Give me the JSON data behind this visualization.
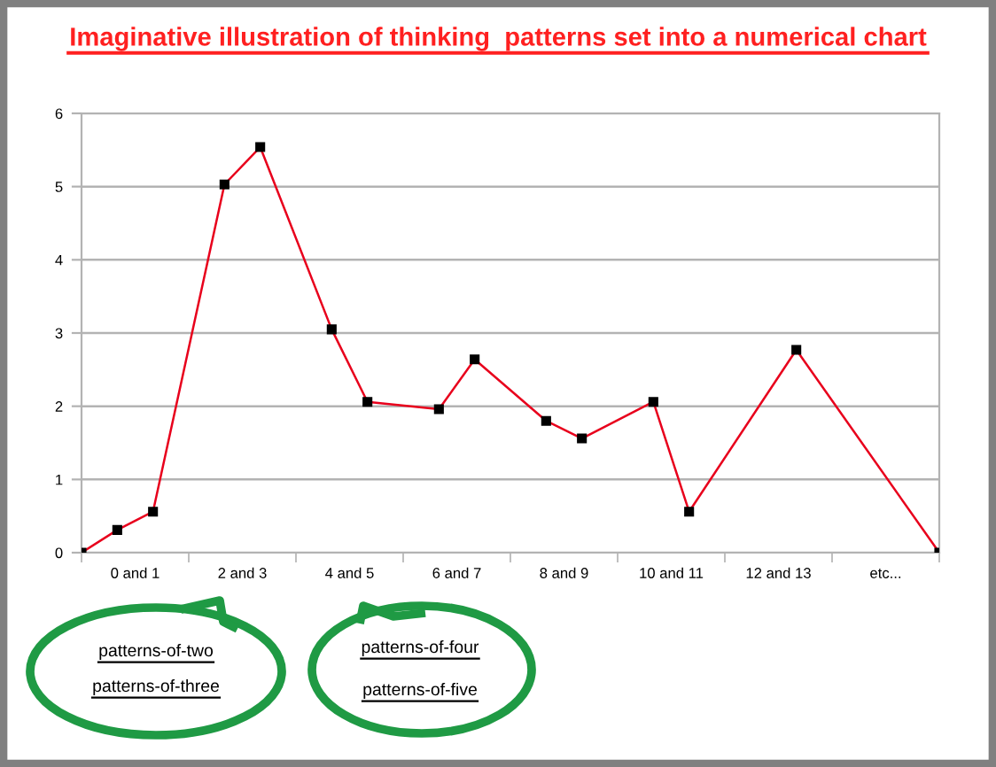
{
  "chart_data": {
    "type": "line",
    "title": "Imaginative illustration of thinking  patterns set into a numerical chart",
    "categories": [
      null,
      null,
      null,
      "0 and 1",
      null,
      null,
      null,
      null,
      null,
      "2 and 3",
      null,
      null,
      null,
      null,
      null,
      "4 and 5",
      null,
      null,
      null,
      null,
      null,
      "6 and 7",
      null,
      null,
      null,
      null,
      null,
      "8 and 9",
      null,
      null,
      null,
      null,
      null,
      "10 and 11",
      null,
      null,
      null,
      null,
      null,
      "12 and 13",
      null,
      null,
      null,
      null,
      null,
      "etc...",
      null,
      null,
      null
    ],
    "series": [
      {
        "color": "#e8001c",
        "values": [
          0,
          null,
          0.31,
          null,
          0.56,
          null,
          null,
          null,
          5.03,
          null,
          5.54,
          null,
          null,
          null,
          3.05,
          null,
          2.06,
          null,
          null,
          null,
          1.96,
          null,
          2.64,
          null,
          null,
          null,
          1.8,
          null,
          1.56,
          null,
          null,
          null,
          2.06,
          null,
          0.56,
          null,
          null,
          null,
          null,
          null,
          2.77,
          null,
          null,
          null,
          null,
          null,
          null,
          null,
          0
        ]
      }
    ],
    "ylim": [
      0,
      6
    ],
    "yticks": [
      0,
      1,
      2,
      3,
      4,
      5,
      6
    ],
    "grid": "y",
    "marker": "square",
    "line_style": "solid",
    "annotations": [
      "patterns-of-two",
      "patterns-of-three",
      "patterns-of-four",
      "patterns-of-five"
    ]
  }
}
